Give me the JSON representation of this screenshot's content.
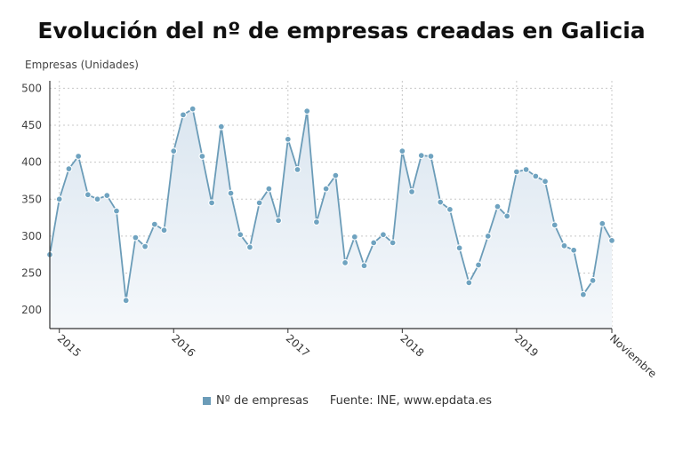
{
  "chart_data": {
    "type": "line",
    "title": "Evolución del nº de empresas creadas en Galicia",
    "ylabel": "Empresas (Unidades)",
    "xlabel": "",
    "ylim": [
      175,
      510
    ],
    "yticks": [
      200,
      250,
      300,
      350,
      400,
      450,
      500
    ],
    "x_tick_labels": [
      "2015",
      "2016",
      "2017",
      "2018",
      "2019",
      "Noviembre"
    ],
    "grid": true,
    "legend_position": "bottom",
    "colors": {
      "line": "#6b9cb8",
      "point_fill": "#6fa3c0",
      "area_top": "#dbe6f0",
      "area_bottom": "#f5f8fb"
    },
    "series": [
      {
        "name": "Nº de empresas",
        "x_start": "2014-12",
        "values": [
          275,
          350,
          391,
          408,
          356,
          350,
          355,
          334,
          213,
          298,
          286,
          316,
          308,
          415,
          464,
          472,
          408,
          345,
          448,
          358,
          302,
          285,
          345,
          364,
          321,
          431,
          390,
          469,
          319,
          364,
          382,
          264,
          299,
          260,
          291,
          302,
          291,
          415,
          360,
          409,
          408,
          346,
          336,
          284,
          237,
          261,
          300,
          340,
          327,
          387,
          390,
          381,
          374,
          315,
          287,
          281,
          221,
          240,
          317,
          294
        ]
      }
    ]
  },
  "legend": {
    "series_label": "Nº de empresas",
    "source": "Fuente: INE, www.epdata.es"
  }
}
